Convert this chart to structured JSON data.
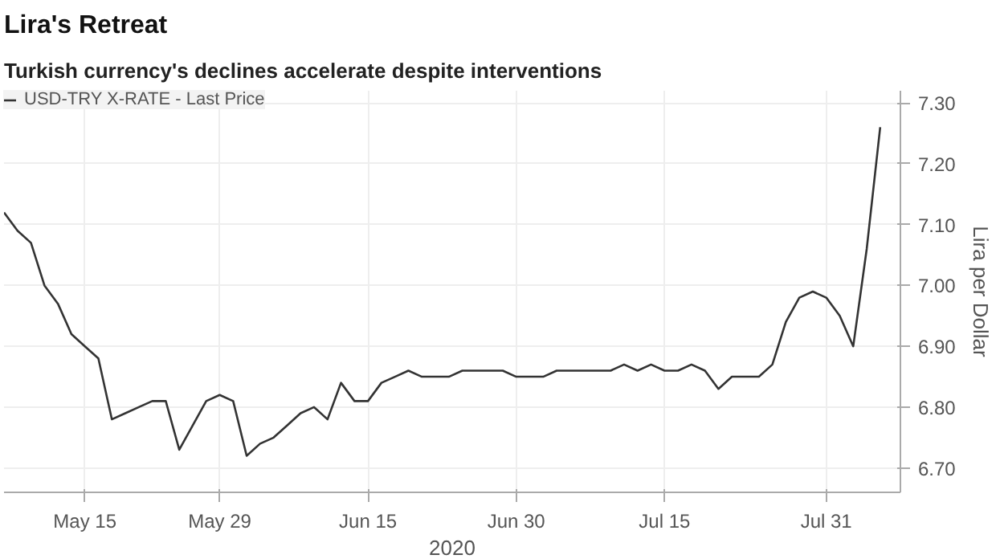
{
  "chart_data": {
    "type": "line",
    "title": "Lira's Retreat",
    "subtitle": "Turkish currency's declines accelerate despite interventions",
    "xlabel": "2020",
    "ylabel": "Lira per Dollar",
    "categories": [
      null,
      null,
      null,
      null,
      null,
      null,
      "May 15",
      null,
      null,
      null,
      null,
      null,
      null,
      null,
      null,
      null,
      "May 29",
      null,
      null,
      null,
      null,
      null,
      null,
      null,
      null,
      null,
      null,
      "Jun 15",
      null,
      null,
      null,
      null,
      null,
      null,
      null,
      null,
      null,
      null,
      "Jun 30",
      null,
      null,
      null,
      null,
      null,
      null,
      null,
      null,
      null,
      null,
      "Jul 15",
      null,
      null,
      null,
      null,
      null,
      null,
      null,
      null,
      null,
      null,
      null,
      "Jul 31",
      null,
      null,
      null,
      null
    ],
    "series": [
      {
        "name": "USD-TRY X-RATE - Last Price",
        "color": "#333333",
        "values": [
          7.12,
          7.09,
          7.07,
          7.0,
          6.97,
          6.92,
          6.9,
          6.88,
          6.78,
          6.79,
          6.8,
          6.81,
          6.81,
          6.73,
          6.77,
          6.81,
          6.82,
          6.81,
          6.72,
          6.74,
          6.75,
          6.77,
          6.79,
          6.8,
          6.78,
          6.84,
          6.81,
          6.81,
          6.84,
          6.85,
          6.86,
          6.85,
          6.85,
          6.85,
          6.86,
          6.86,
          6.86,
          6.86,
          6.85,
          6.85,
          6.85,
          6.86,
          6.86,
          6.86,
          6.86,
          6.86,
          6.87,
          6.86,
          6.87,
          6.86,
          6.86,
          6.87,
          6.86,
          6.83,
          6.85,
          6.85,
          6.85,
          6.87,
          6.94,
          6.98,
          6.99,
          6.98,
          6.95,
          6.9,
          7.06,
          7.26
        ]
      }
    ],
    "ylim": [
      6.66,
      7.32
    ],
    "yticks": [
      {
        "value": 6.7,
        "label": "6.70"
      },
      {
        "value": 6.8,
        "label": "6.80"
      },
      {
        "value": 6.9,
        "label": "6.90"
      },
      {
        "value": 7.0,
        "label": "7.00"
      },
      {
        "value": 7.1,
        "label": "7.10"
      },
      {
        "value": 7.2,
        "label": "7.20"
      },
      {
        "value": 7.3,
        "label": "7.30"
      }
    ],
    "grid": true,
    "legend": "top left",
    "marker": "none",
    "line_style": "solid"
  }
}
